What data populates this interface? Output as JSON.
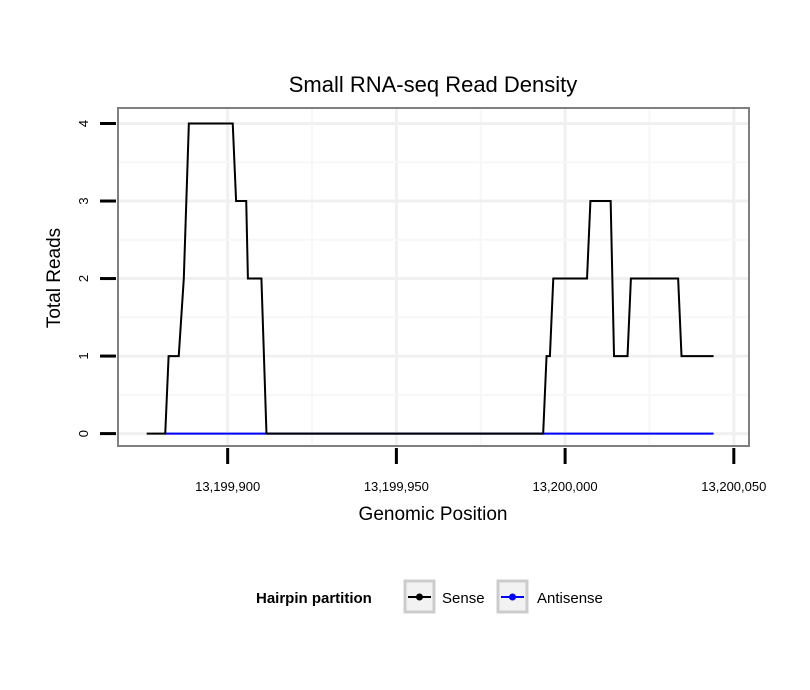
{
  "chart_data": {
    "type": "line",
    "title": "Small RNA-seq Read Density",
    "xlabel": "Genomic Position",
    "ylabel": "Total Reads",
    "xlim": [
      13199867.5,
      13200054.5
    ],
    "ylim": [
      -0.16,
      4.2
    ],
    "x_ticks": [
      13199900,
      13199950,
      13200000,
      13200050
    ],
    "x_tick_labels": [
      "13,199,900",
      "13,199,950",
      "13,200,000",
      "13,200,050"
    ],
    "y_ticks": [
      0,
      1,
      2,
      3,
      4
    ],
    "y_tick_labels": [
      "0",
      "1",
      "2",
      "3",
      "4"
    ],
    "grid": true,
    "legend": {
      "title": "Hairpin partition",
      "position": "bottom"
    },
    "series": [
      {
        "name": "Sense",
        "color": "#000000",
        "x": [
          13199876,
          13199881.5,
          13199882.5,
          13199885.5,
          13199887,
          13199888.5,
          13199901.5,
          13199902.5,
          13199905.5,
          13199906,
          13199910,
          13199911.5,
          13199993.5,
          13199994.5,
          13199995.5,
          13199996.5,
          13200006.5,
          13200007.5,
          13200013.5,
          13200014.5,
          13200018.5,
          13200019.5,
          13200033.5,
          13200034.5,
          13200044
        ],
        "values": [
          0,
          0,
          1,
          1,
          2,
          4,
          4,
          3,
          3,
          2,
          2,
          0,
          0,
          1,
          1,
          2,
          2,
          3,
          3,
          1,
          1,
          2,
          2,
          1,
          1
        ]
      },
      {
        "name": "Antisense",
        "color": "#0000ff",
        "x": [
          13199881.5,
          13200044
        ],
        "values": [
          0,
          0
        ]
      }
    ]
  }
}
